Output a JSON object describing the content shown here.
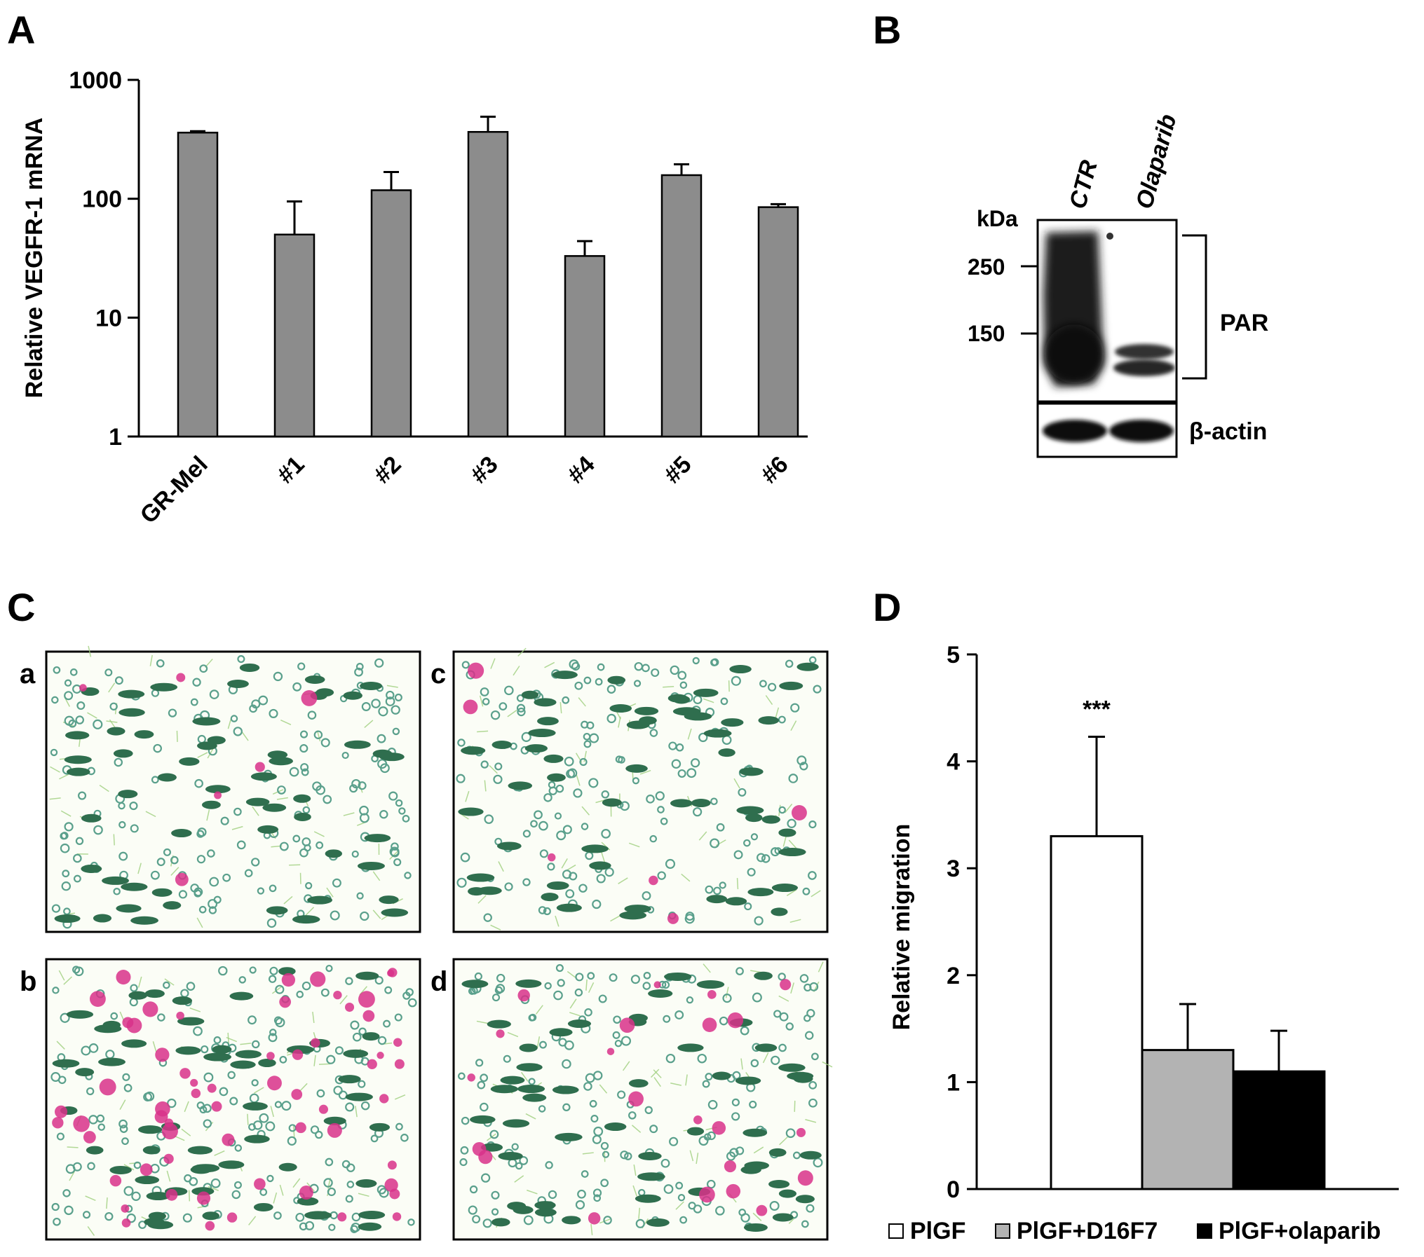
{
  "panel_letters": {
    "a": "A",
    "b": "B",
    "c": "C",
    "d": "D"
  },
  "chart_data": [
    {
      "panel": "A",
      "type": "bar",
      "scale": "log",
      "ylabel": "Relative VEGFR-1 mRNA",
      "ylim": [
        1,
        1000
      ],
      "yticks": [
        "1",
        "10",
        "100",
        "1000"
      ],
      "ytick_values": [
        1,
        10,
        100,
        1000
      ],
      "categories": [
        "GR-Mel",
        "#1",
        "#2",
        "#3",
        "#4",
        "#5",
        "#6"
      ],
      "values": [
        360,
        50,
        118,
        365,
        33,
        158,
        85
      ],
      "errors": [
        10,
        45,
        50,
        125,
        11,
        37,
        5
      ],
      "bar_color": "#8c8c8c"
    },
    {
      "panel": "D",
      "type": "bar",
      "ylabel": "Relative migration",
      "ylim": [
        0,
        5
      ],
      "yticks": [
        "0",
        "1",
        "2",
        "3",
        "4",
        "5"
      ],
      "ytick_values": [
        0,
        1,
        2,
        3,
        4,
        5
      ],
      "categories": [
        "PlGF",
        "PlGF+D16F7",
        "PlGF+olaparib"
      ],
      "values": [
        3.3,
        1.3,
        1.1
      ],
      "errors": [
        0.93,
        0.43,
        0.38
      ],
      "colors": [
        "#ffffff",
        "#b3b3b3",
        "#000000"
      ],
      "annotation": "***",
      "legend_position": "bottom",
      "legend": [
        "PlGF",
        "PlGF+D16F7",
        "PlGF+olaparib"
      ]
    }
  ],
  "blot": {
    "lanes": [
      "CTR",
      "Olaparib"
    ],
    "unit": "kDa",
    "markers": [
      "250",
      "150"
    ],
    "band_labels": {
      "par": "PAR",
      "actin": "β-actin"
    }
  },
  "micrographs": {
    "labels": [
      "a",
      "c",
      "b",
      "d"
    ],
    "colors": {
      "cell": "#2f6e4e",
      "pore": "#5aa08c",
      "stain": "#d8318a",
      "fiber": "#9fcf7e"
    }
  }
}
